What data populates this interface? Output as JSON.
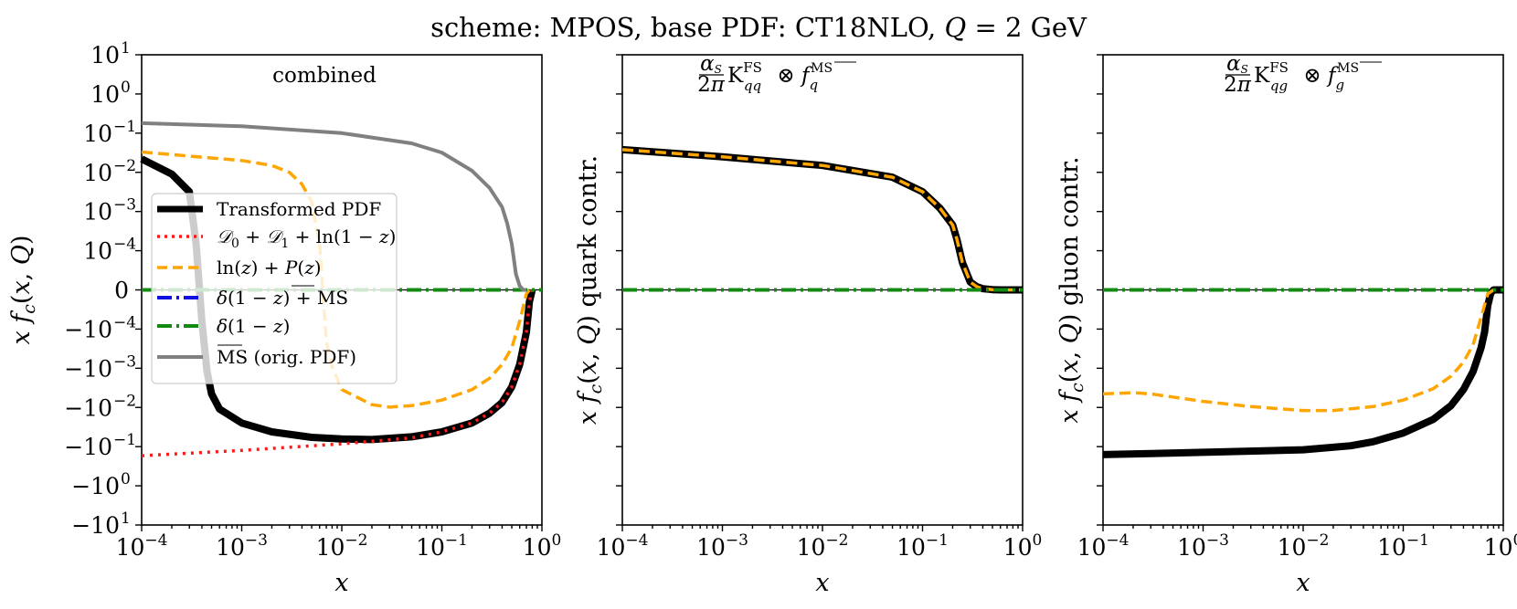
{
  "suptitle": "scheme: MPOS, base PDF: CT18NLO, Q = 2 GeV",
  "chart_data": [
    {
      "type": "line",
      "panel_title": "combined",
      "xlabel": "x",
      "ylabel": "x f_c(x, Q)",
      "xscale": "log",
      "xlim": [
        0.0001,
        1
      ],
      "yscale": "symlog",
      "ylim": [
        -10,
        10
      ],
      "x_ticks": [
        "10^-4",
        "10^-3",
        "10^-2",
        "10^-1",
        "10^0"
      ],
      "y_ticks": [
        "10^1",
        "10^0",
        "10^-1",
        "10^-2",
        "10^-3",
        "10^-4",
        "0",
        "-10^-4",
        "-10^-3",
        "-10^-2",
        "-10^-1",
        "-10^0",
        "-10^1"
      ],
      "zero_line": true,
      "legend_position": "center-left",
      "series": [
        {
          "name": "Transformed PDF",
          "color": "#000000",
          "style": "solid-thick",
          "x": [
            0.0001,
            0.0002,
            0.0003,
            0.00035,
            0.0004,
            0.00045,
            0.0005,
            0.0006,
            0.001,
            0.002,
            0.005,
            0.01,
            0.02,
            0.05,
            0.1,
            0.2,
            0.3,
            0.4,
            0.5,
            0.6,
            0.7,
            0.75,
            0.8
          ],
          "y": [
            0.022,
            0.009,
            0.0032,
            0.00015,
            -8e-05,
            -0.0012,
            -0.0045,
            -0.011,
            -0.025,
            -0.042,
            -0.058,
            -0.064,
            -0.066,
            -0.056,
            -0.042,
            -0.025,
            -0.014,
            -0.0075,
            -0.003,
            -0.0008,
            -0.00012,
            -3e-05,
            0
          ]
        },
        {
          "name": "D0 + D1 + ln(1-z)",
          "color": "#ff1a1a",
          "style": "dotted",
          "x": [
            0.0001,
            0.001,
            0.01,
            0.05,
            0.1,
            0.2,
            0.3,
            0.4,
            0.5,
            0.6,
            0.7,
            0.75,
            0.8
          ],
          "y": [
            -0.17,
            -0.125,
            -0.085,
            -0.06,
            -0.042,
            -0.025,
            -0.014,
            -0.0075,
            -0.003,
            -0.0008,
            -0.00012,
            -3e-05,
            0
          ]
        },
        {
          "name": "ln(z) + P(z)",
          "color": "#ffa500",
          "style": "dashed",
          "x": [
            0.0001,
            0.001,
            0.002,
            0.003,
            0.004,
            0.005,
            0.006,
            0.007,
            0.008,
            0.01,
            0.02,
            0.03,
            0.05,
            0.1,
            0.2,
            0.3,
            0.4,
            0.5,
            0.6,
            0.7,
            0.75
          ],
          "y": [
            0.033,
            0.02,
            0.015,
            0.01,
            0.005,
            0.0018,
            0.00015,
            -0.0002,
            -0.0009,
            -0.0035,
            -0.0085,
            -0.0098,
            -0.009,
            -0.0065,
            -0.0035,
            -0.0018,
            -0.0008,
            -0.0003,
            -8e-05,
            -1e-05,
            0
          ]
        },
        {
          "name": "δ(1-z) + MS-bar",
          "color": "#1010e0",
          "style": "dashdot",
          "x": [
            0.0001,
            1
          ],
          "y": [
            0,
            0
          ]
        },
        {
          "name": "δ(1-z)",
          "color": "#138a13",
          "style": "dashdot",
          "x": [
            0.0001,
            1
          ],
          "y": [
            0,
            0
          ]
        },
        {
          "name": "MS-bar (orig. PDF)",
          "color": "#808080",
          "style": "solid",
          "x": [
            0.0001,
            0.001,
            0.01,
            0.05,
            0.1,
            0.2,
            0.3,
            0.4,
            0.45,
            0.5,
            0.55,
            0.6,
            0.65,
            0.7
          ],
          "y": [
            0.18,
            0.15,
            0.1,
            0.055,
            0.032,
            0.011,
            0.004,
            0.0013,
            0.0005,
            0.00015,
            4e-05,
            1e-05,
            0,
            0
          ]
        }
      ]
    },
    {
      "type": "line",
      "panel_title": "(α_S/2π) K^FS_qq ⊗ f_q^MS-bar",
      "xlabel": "x",
      "ylabel": "x f_c(x, Q)  quark contr.",
      "xscale": "log",
      "xlim": [
        0.0001,
        1
      ],
      "yscale": "symlog",
      "ylim": [
        -10,
        10
      ],
      "x_ticks": [
        "10^-4",
        "10^-3",
        "10^-2",
        "10^-1",
        "10^0"
      ],
      "zero_line": true,
      "series": [
        {
          "name": "Transformed PDF",
          "color": "#000000",
          "style": "solid-thick",
          "x": [
            0.0001,
            0.001,
            0.01,
            0.05,
            0.1,
            0.15,
            0.2,
            0.22,
            0.25,
            0.3,
            0.35,
            0.4,
            0.5,
            0.6,
            0.8,
            1.0
          ],
          "y": [
            0.038,
            0.025,
            0.015,
            0.0075,
            0.0032,
            0.0012,
            0.00045,
            0.0002,
            7e-05,
            2e-05,
            8e-06,
            3e-06,
            8e-07,
            0,
            0,
            0
          ]
        },
        {
          "name": "ln(z) + P(z)",
          "color": "#ffa500",
          "style": "dashed",
          "x": [
            0.0001,
            0.001,
            0.01,
            0.05,
            0.1,
            0.15,
            0.2,
            0.22,
            0.25,
            0.3,
            0.35,
            0.4,
            0.5,
            0.6,
            0.8,
            1.0
          ],
          "y": [
            0.038,
            0.025,
            0.015,
            0.0075,
            0.0032,
            0.0012,
            0.00045,
            0.0002,
            7e-05,
            2e-05,
            8e-06,
            3e-06,
            8e-07,
            0,
            0,
            0
          ]
        },
        {
          "name": "δ(1-z) + MS-bar",
          "color": "#1010e0",
          "style": "dashdot",
          "x": [
            0.0001,
            1
          ],
          "y": [
            0,
            0
          ]
        },
        {
          "name": "δ(1-z)",
          "color": "#138a13",
          "style": "dashdot",
          "x": [
            0.0001,
            1
          ],
          "y": [
            0,
            0
          ]
        }
      ]
    },
    {
      "type": "line",
      "panel_title": "(α_S/2π) K^FS_qg ⊗ f_g^MS-bar",
      "xlabel": "x",
      "ylabel": "x f_c(x, Q)  gluon contr.",
      "xscale": "log",
      "xlim": [
        0.0001,
        1
      ],
      "yscale": "symlog",
      "ylim": [
        -10,
        10
      ],
      "x_ticks": [
        "10^-4",
        "10^-3",
        "10^-2",
        "10^-1",
        "10^0"
      ],
      "zero_line": true,
      "series": [
        {
          "name": "D0 + D1 + ln(1-z)",
          "color": "#ff1a1a",
          "style": "dotted",
          "x": [
            0.0001,
            0.001,
            0.01,
            0.03,
            0.05,
            0.1,
            0.2,
            0.3,
            0.4,
            0.5,
            0.6,
            0.65,
            0.7,
            0.75,
            0.8,
            1.0
          ],
          "y": [
            -0.16,
            -0.14,
            -0.12,
            -0.095,
            -0.075,
            -0.045,
            -0.02,
            -0.009,
            -0.0035,
            -0.0012,
            -0.0003,
            -0.00012,
            -4e-05,
            -8e-06,
            0,
            0
          ]
        },
        {
          "name": "Transformed PDF",
          "color": "#000000",
          "style": "solid-thick",
          "x": [
            0.0001,
            0.001,
            0.01,
            0.03,
            0.05,
            0.1,
            0.2,
            0.3,
            0.4,
            0.5,
            0.6,
            0.65,
            0.7,
            0.75,
            0.8,
            1.0
          ],
          "y": [
            -0.16,
            -0.14,
            -0.12,
            -0.095,
            -0.075,
            -0.045,
            -0.02,
            -0.009,
            -0.0035,
            -0.0012,
            -0.0003,
            -0.00012,
            -4e-05,
            -8e-06,
            0,
            0
          ]
        },
        {
          "name": "ln(z) + P(z)",
          "color": "#ffa500",
          "style": "dashed",
          "x": [
            0.0001,
            0.0002,
            0.0003,
            0.001,
            0.003,
            0.01,
            0.02,
            0.05,
            0.1,
            0.2,
            0.3,
            0.4,
            0.5,
            0.6,
            0.7,
            0.8
          ],
          "y": [
            -0.0045,
            -0.0042,
            -0.0045,
            -0.007,
            -0.0095,
            -0.012,
            -0.012,
            -0.0095,
            -0.0065,
            -0.0033,
            -0.0016,
            -0.0007,
            -0.00025,
            -7e-05,
            -1e-05,
            0
          ]
        },
        {
          "name": "δ(1-z) + MS-bar",
          "color": "#1010e0",
          "style": "dashdot",
          "x": [
            0.0001,
            1
          ],
          "y": [
            0,
            0
          ]
        },
        {
          "name": "δ(1-z)",
          "color": "#138a13",
          "style": "dashdot",
          "x": [
            0.0001,
            1
          ],
          "y": [
            0,
            0
          ]
        }
      ]
    }
  ]
}
